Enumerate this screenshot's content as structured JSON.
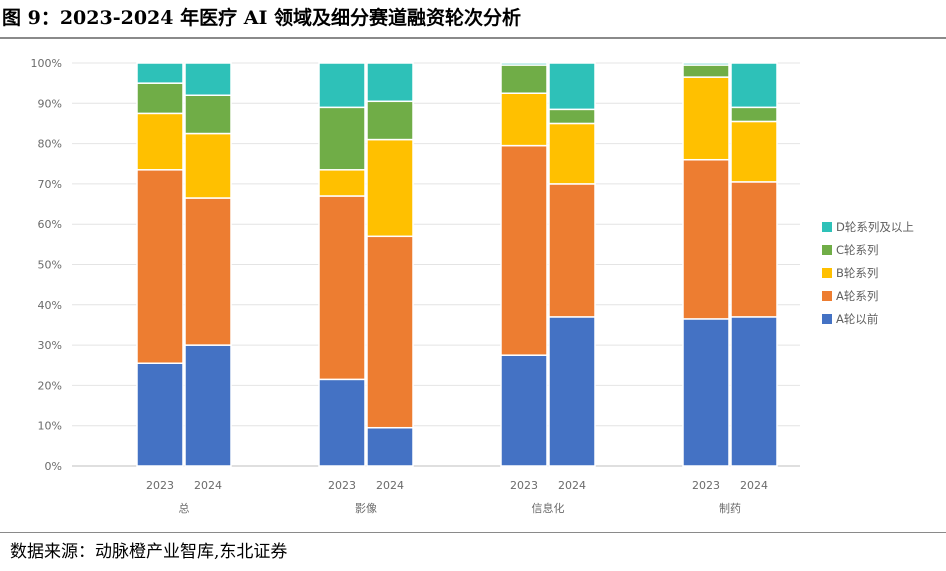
{
  "title": "图 9：2023-2024 年医疗 AI 领域及细分赛道融资轮次分析",
  "source": "数据来源：动脉橙产业智库,东北证券",
  "chart_data": {
    "type": "bar",
    "stacked": true,
    "groups": [
      "总",
      "影像",
      "信息化",
      "制药"
    ],
    "years": [
      "2023",
      "2024"
    ],
    "ylim": [
      0,
      100
    ],
    "y_ticks": [
      "0%",
      "10%",
      "20%",
      "30%",
      "40%",
      "50%",
      "60%",
      "70%",
      "80%",
      "90%",
      "100%"
    ],
    "legend_position": "right",
    "series": [
      {
        "name": "A轮以前",
        "color": "#4472C4",
        "values": [
          25.5,
          30,
          21.5,
          9.5,
          27.5,
          37,
          36.5,
          37
        ]
      },
      {
        "name": "A轮系列",
        "color": "#ED7D31",
        "values": [
          48,
          36.5,
          45.5,
          47.5,
          52,
          33,
          39.5,
          33.5
        ]
      },
      {
        "name": "B轮系列",
        "color": "#FFC000",
        "values": [
          14,
          16,
          6.5,
          24,
          13,
          15,
          20.5,
          15
        ]
      },
      {
        "name": "C轮系列",
        "color": "#70AD47",
        "values": [
          7.5,
          9.5,
          15.5,
          9.5,
          7,
          3.5,
          3,
          3.5
        ]
      },
      {
        "name": "D轮系列及以上",
        "color": "#2EC1B8",
        "values": [
          5,
          8,
          11,
          9.5,
          0.5,
          11.5,
          0.5,
          11
        ]
      }
    ]
  }
}
